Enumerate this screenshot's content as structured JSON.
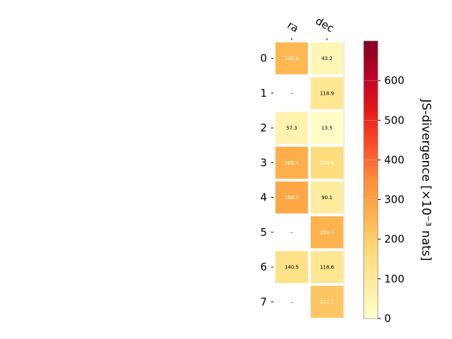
{
  "chart_data": {
    "type": "heatmap",
    "x_categories": [
      "ra",
      "dec"
    ],
    "y_categories": [
      "0",
      "1",
      "2",
      "3",
      "4",
      "5",
      "6",
      "7"
    ],
    "values": [
      [
        249.8,
        43.2
      ],
      [
        null,
        118.9
      ],
      [
        57.3,
        13.5
      ],
      [
        268.7,
        159.4
      ],
      [
        288.5,
        90.1
      ],
      [
        null,
        259.4
      ],
      [
        140.5,
        118.6
      ],
      [
        null,
        217.7
      ]
    ],
    "cell_labels": [
      [
        "249.8",
        "43.2"
      ],
      [
        "–",
        "118.9"
      ],
      [
        "57.3",
        "13.5"
      ],
      [
        "268.7",
        "159.4"
      ],
      [
        "288.5",
        "90.1"
      ],
      [
        "–",
        "259.4"
      ],
      [
        "140.5",
        "118.6"
      ],
      [
        "–",
        "217.7"
      ]
    ],
    "missing_label": "–",
    "colorbar": {
      "label": "JS-divergence [×10⁻³ nats]",
      "range": [
        0,
        700
      ],
      "ticks": [
        0,
        100,
        200,
        300,
        400,
        500,
        600
      ],
      "colormap": "YlOrRd"
    },
    "colors": {
      "cmap_stops": [
        "#ffffcc",
        "#ffeda0",
        "#fed976",
        "#feb24c",
        "#fd8d3c",
        "#fc4e2a",
        "#e31a1c",
        "#bd0026",
        "#800026"
      ],
      "text_dark": "#000000",
      "text_light": "#ffffff"
    }
  }
}
